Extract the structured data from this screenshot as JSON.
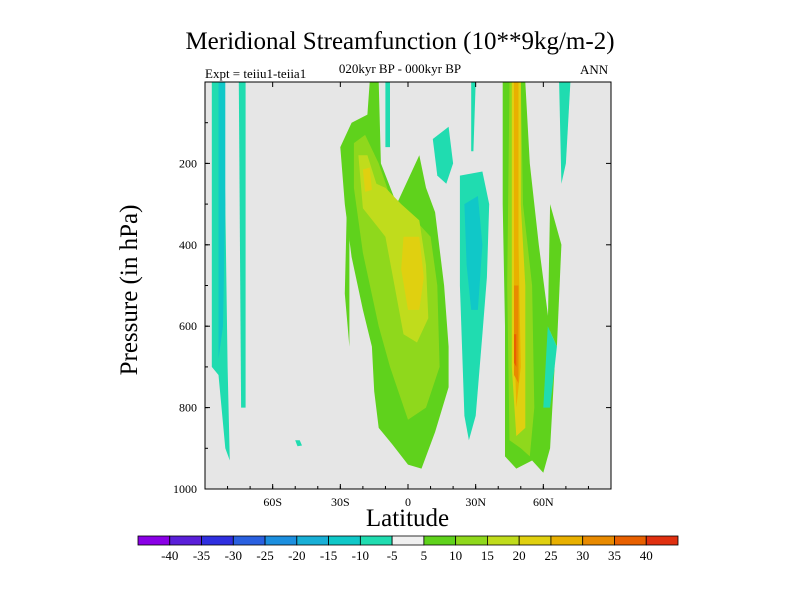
{
  "chart_data": {
    "type": "heatmap",
    "title": "Meridional Streamfunction (10**9kg/m-2)",
    "subtitle": "020kyr BP - 000kyr BP",
    "left_label": "Expt = teiiu1-teiia1",
    "right_label": "ANN",
    "xlabel": "Latitude",
    "ylabel": "Pressure (in hPa)",
    "xlim": [
      -90,
      90
    ],
    "ylim": [
      1000,
      0
    ],
    "x_ticks": [
      {
        "value": -60,
        "label": "60S"
      },
      {
        "value": -30,
        "label": "30S"
      },
      {
        "value": 0,
        "label": "0"
      },
      {
        "value": 30,
        "label": "30N"
      },
      {
        "value": 60,
        "label": "60N"
      }
    ],
    "y_ticks": [
      {
        "value": 200,
        "label": "200"
      },
      {
        "value": 400,
        "label": "400"
      },
      {
        "value": 600,
        "label": "600"
      },
      {
        "value": 800,
        "label": "800"
      },
      {
        "value": 1000,
        "label": "1000"
      }
    ],
    "background_color": "#e6e6e6",
    "colorbar": {
      "levels": [
        -40,
        -35,
        -30,
        -25,
        -20,
        -15,
        -10,
        -5,
        5,
        10,
        15,
        20,
        25,
        30,
        35,
        40
      ],
      "colors": [
        "#8a00e6",
        "#5a1fd9",
        "#2f2fe0",
        "#2a60e0",
        "#1c8fdf",
        "#18afd6",
        "#10c8c8",
        "#20dcb0",
        "#f0f0f0",
        "#5fd21c",
        "#8fd81c",
        "#c0dc1c",
        "#e0d010",
        "#e8b000",
        "#e88a00",
        "#e86000",
        "#e03010"
      ]
    },
    "regions": [
      {
        "name": "sh-polar-cell-outer",
        "value": -10,
        "points": [
          [
            -87,
            0
          ],
          [
            -82,
            0
          ],
          [
            -81,
            300
          ],
          [
            -80,
            700
          ],
          [
            -79,
            930
          ],
          [
            -81,
            900
          ],
          [
            -84,
            720
          ],
          [
            -87,
            700
          ]
        ]
      },
      {
        "name": "sh-polar-cell-core",
        "value": -15,
        "points": [
          [
            -84,
            0
          ],
          [
            -81,
            0
          ],
          [
            -81,
            300
          ],
          [
            -82,
            600
          ],
          [
            -84,
            680
          ]
        ]
      },
      {
        "name": "sh-polar-cell-thin",
        "value": -10,
        "points": [
          [
            -75,
            0
          ],
          [
            -72,
            0
          ],
          [
            -72,
            800
          ],
          [
            -74,
            800
          ]
        ]
      },
      {
        "name": "sh-small-blob",
        "value": -10,
        "points": [
          [
            -50,
            880
          ],
          [
            -48,
            880
          ],
          [
            -47,
            893
          ],
          [
            -49,
            895
          ]
        ]
      },
      {
        "name": "tropical-outer",
        "value": 5,
        "points": [
          [
            -27,
            280
          ],
          [
            -26,
            280
          ],
          [
            -26,
            650
          ],
          [
            -28,
            520
          ]
        ]
      },
      {
        "name": "tropical-main",
        "value": 5,
        "points": [
          [
            -15,
            0
          ],
          [
            -13,
            0
          ],
          [
            -12,
            200
          ],
          [
            -5,
            300
          ],
          [
            5,
            180
          ],
          [
            8,
            260
          ],
          [
            12,
            320
          ],
          [
            16,
            500
          ],
          [
            18,
            650
          ],
          [
            18,
            750
          ],
          [
            12,
            860
          ],
          [
            6,
            950
          ],
          [
            0,
            940
          ],
          [
            -7,
            890
          ],
          [
            -13,
            850
          ],
          [
            -15,
            760
          ],
          [
            -16,
            650
          ],
          [
            -20,
            560
          ],
          [
            -25,
            430
          ],
          [
            -28,
            300
          ],
          [
            -30,
            160
          ],
          [
            -25,
            100
          ],
          [
            -18,
            80
          ],
          [
            -17,
            0
          ]
        ]
      },
      {
        "name": "tropical-10",
        "value": 10,
        "points": [
          [
            -24,
            150
          ],
          [
            -19,
            130
          ],
          [
            -13,
            200
          ],
          [
            -8,
            280
          ],
          [
            0,
            320
          ],
          [
            10,
            380
          ],
          [
            13,
            500
          ],
          [
            14,
            700
          ],
          [
            8,
            800
          ],
          [
            0,
            830
          ],
          [
            -8,
            700
          ],
          [
            -13,
            600
          ],
          [
            -20,
            420
          ],
          [
            -24,
            260
          ]
        ]
      },
      {
        "name": "tropical-15",
        "value": 15,
        "points": [
          [
            -22,
            180
          ],
          [
            -18,
            180
          ],
          [
            -14,
            250
          ],
          [
            -10,
            260
          ],
          [
            -3,
            300
          ],
          [
            5,
            340
          ],
          [
            8,
            450
          ],
          [
            9,
            580
          ],
          [
            4,
            640
          ],
          [
            -2,
            620
          ],
          [
            -6,
            500
          ],
          [
            -10,
            380
          ],
          [
            -20,
            310
          ]
        ]
      },
      {
        "name": "tropical-20",
        "value": 20,
        "points": [
          [
            -20,
            215
          ],
          [
            -17,
            210
          ],
          [
            -16,
            265
          ],
          [
            -19,
            270
          ]
        ]
      },
      {
        "name": "tropical-20b",
        "value": 20,
        "points": [
          [
            -2,
            380
          ],
          [
            5,
            380
          ],
          [
            7,
            480
          ],
          [
            5,
            560
          ],
          [
            0,
            560
          ],
          [
            -3,
            460
          ]
        ]
      },
      {
        "name": "tropical-upper-teal",
        "value": -10,
        "points": [
          [
            -10,
            0
          ],
          [
            -8,
            0
          ],
          [
            -8,
            160
          ],
          [
            -10,
            160
          ]
        ]
      },
      {
        "name": "nh-upper-teal",
        "value": -10,
        "points": [
          [
            11,
            140
          ],
          [
            18,
            110
          ],
          [
            20,
            200
          ],
          [
            17,
            250
          ],
          [
            13,
            230
          ]
        ]
      },
      {
        "name": "nh-upper-thin",
        "value": -10,
        "points": [
          [
            28,
            0
          ],
          [
            30,
            0
          ],
          [
            29,
            170
          ],
          [
            28,
            170
          ]
        ]
      },
      {
        "name": "nh-mid-teal",
        "value": -10,
        "points": [
          [
            23,
            230
          ],
          [
            33,
            220
          ],
          [
            36,
            300
          ],
          [
            35,
            480
          ],
          [
            33,
            620
          ],
          [
            30,
            820
          ],
          [
            27,
            880
          ],
          [
            25,
            820
          ],
          [
            23,
            500
          ]
        ]
      },
      {
        "name": "nh-mid-core",
        "value": -15,
        "points": [
          [
            25,
            300
          ],
          [
            31,
            280
          ],
          [
            33,
            400
          ],
          [
            31,
            560
          ],
          [
            28,
            560
          ],
          [
            26,
            450
          ]
        ]
      },
      {
        "name": "nh-ferrel-5",
        "value": 5,
        "points": [
          [
            42,
            0
          ],
          [
            52,
            0
          ],
          [
            54,
            200
          ],
          [
            58,
            400
          ],
          [
            65,
            700
          ],
          [
            63,
            900
          ],
          [
            60,
            960
          ],
          [
            55,
            930
          ],
          [
            48,
            950
          ],
          [
            43,
            920
          ],
          [
            43,
            600
          ],
          [
            42,
            300
          ]
        ]
      },
      {
        "name": "nh-ferrel-10",
        "value": 10,
        "points": [
          [
            45,
            0
          ],
          [
            50,
            0
          ],
          [
            51,
            300
          ],
          [
            55,
            500
          ],
          [
            56,
            800
          ],
          [
            54,
            920
          ],
          [
            50,
            900
          ],
          [
            45,
            880
          ],
          [
            44,
            500
          ]
        ]
      },
      {
        "name": "nh-ferrel-20",
        "value": 20,
        "points": [
          [
            46,
            0
          ],
          [
            50,
            0
          ],
          [
            50,
            300
          ],
          [
            52,
            500
          ],
          [
            52,
            850
          ],
          [
            48,
            870
          ],
          [
            46,
            700
          ],
          [
            46,
            300
          ]
        ]
      },
      {
        "name": "nh-ferrel-25",
        "value": 25,
        "points": [
          [
            47,
            0
          ],
          [
            49,
            0
          ],
          [
            49,
            400
          ],
          [
            50,
            700
          ],
          [
            48,
            800
          ],
          [
            47,
            600
          ]
        ]
      },
      {
        "name": "nh-ferrel-30",
        "value": 30,
        "points": [
          [
            47,
            500
          ],
          [
            49,
            500
          ],
          [
            49,
            740
          ],
          [
            47,
            720
          ]
        ]
      },
      {
        "name": "nh-ferrel-35",
        "value": 35,
        "points": [
          [
            47,
            620
          ],
          [
            48,
            620
          ],
          [
            48,
            700
          ],
          [
            47,
            690
          ]
        ]
      },
      {
        "name": "nh-side-5",
        "value": 5,
        "points": [
          [
            63,
            300
          ],
          [
            68,
            400
          ],
          [
            66,
            650
          ],
          [
            62,
            600
          ]
        ]
      },
      {
        "name": "nh-polar-teal",
        "value": -10,
        "points": [
          [
            67,
            0
          ],
          [
            72,
            0
          ],
          [
            70,
            200
          ],
          [
            68,
            250
          ]
        ]
      },
      {
        "name": "nh-polar-teal-2",
        "value": -10,
        "points": [
          [
            62,
            600
          ],
          [
            66,
            650
          ],
          [
            63,
            800
          ],
          [
            60,
            800
          ]
        ]
      }
    ]
  }
}
